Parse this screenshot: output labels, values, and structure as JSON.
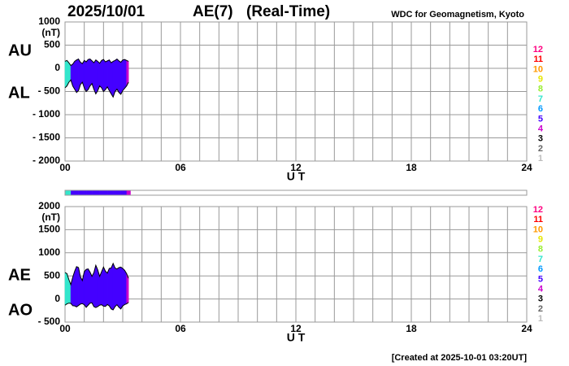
{
  "header": {
    "date": "2025/10/01",
    "index": "AE(7)",
    "mode": "(Real-Time)",
    "source": "WDC for Geomagnetism, Kyoto",
    "created": "[Created at 2025-10-01 03:20UT]"
  },
  "chart_data": [
    {
      "type": "area",
      "ylabel": "(nT)",
      "xlabel": "U T",
      "x": [
        0,
        0.1,
        0.2,
        0.3,
        0.4,
        0.5,
        0.6,
        0.7,
        0.8,
        0.9,
        1,
        1.1,
        1.2,
        1.3,
        1.4,
        1.5,
        1.6,
        1.7,
        1.8,
        1.9,
        2,
        2.1,
        2.2,
        2.3,
        2.4,
        2.5,
        2.6,
        2.7,
        2.8,
        2.9,
        3,
        3.1,
        3.2,
        3.3
      ],
      "series": [
        {
          "name": "AU",
          "values": [
            150,
            170,
            120,
            60,
            90,
            150,
            180,
            200,
            130,
            100,
            170,
            140,
            190,
            200,
            160,
            120,
            180,
            150,
            110,
            170,
            190,
            140,
            160,
            180,
            120,
            150,
            170,
            200,
            160,
            130,
            180,
            190,
            170,
            150
          ]
        },
        {
          "name": "AL",
          "values": [
            -420,
            -380,
            -300,
            -250,
            -380,
            -450,
            -520,
            -480,
            -350,
            -300,
            -420,
            -500,
            -460,
            -380,
            -330,
            -450,
            -550,
            -480,
            -380,
            -420,
            -500,
            -460,
            -400,
            -480,
            -550,
            -620,
            -500,
            -450,
            -520,
            -560,
            -480,
            -430,
            -380,
            -300
          ]
        }
      ],
      "stations": [
        7,
        7,
        7,
        5,
        5,
        5,
        5,
        5,
        5,
        5,
        5,
        5,
        5,
        5,
        5,
        5,
        5,
        5,
        5,
        5,
        5,
        5,
        5,
        5,
        5,
        5,
        5,
        5,
        5,
        5,
        5,
        5,
        4,
        4
      ],
      "legend": {
        "labels": [
          12,
          11,
          10,
          9,
          8,
          7,
          6,
          5,
          4,
          3,
          2,
          1
        ],
        "colors": [
          "#ff0080",
          "#ff0000",
          "#ff9900",
          "#e6e600",
          "#99ee33",
          "#33e6cc",
          "#0099ff",
          "#4400ff",
          "#cc00cc",
          "#000000",
          "#666666",
          "#bbbbbb"
        ]
      },
      "xlim": [
        0,
        24
      ],
      "xticks": [
        {
          "value": 0,
          "label": "00"
        },
        {
          "value": 6,
          "label": "06"
        },
        12,
        18,
        24
      ],
      "xgrid": [
        0,
        1,
        2,
        3,
        4,
        5,
        6,
        7,
        8,
        9,
        10,
        11,
        12,
        13,
        14,
        15,
        16,
        17,
        18,
        19,
        20,
        21,
        22,
        23,
        24
      ],
      "ylim": [
        -2000,
        1000
      ],
      "yticks": [
        {
          "value": -2000,
          "label": "- 2000"
        },
        {
          "value": -1500,
          "label": "- 1500"
        },
        {
          "value": -1000,
          "label": "- 1000"
        },
        {
          "value": -500,
          "label": "- 500"
        },
        0,
        500,
        1000
      ],
      "grid": true,
      "outline_color": "#000000"
    },
    {
      "type": "area",
      "ylabel": "(nT)",
      "xlabel": "U T",
      "x": [
        0,
        0.1,
        0.2,
        0.3,
        0.4,
        0.5,
        0.6,
        0.7,
        0.8,
        0.9,
        1,
        1.1,
        1.2,
        1.3,
        1.4,
        1.5,
        1.6,
        1.7,
        1.8,
        1.9,
        2,
        2.1,
        2.2,
        2.3,
        2.4,
        2.5,
        2.6,
        2.7,
        2.8,
        2.9,
        3,
        3.1,
        3.2,
        3.3
      ],
      "series": [
        {
          "name": "AE",
          "values": [
            570,
            550,
            420,
            310,
            470,
            600,
            700,
            680,
            480,
            400,
            590,
            640,
            650,
            580,
            490,
            570,
            730,
            630,
            490,
            590,
            690,
            600,
            560,
            660,
            670,
            770,
            670,
            650,
            680,
            690,
            660,
            620,
            550,
            450
          ]
        },
        {
          "name": "AO",
          "values": [
            -135,
            -105,
            -90,
            -95,
            -145,
            -150,
            -170,
            -140,
            -110,
            -100,
            -125,
            -180,
            -135,
            -90,
            -85,
            -165,
            -185,
            -165,
            -135,
            -125,
            -155,
            -160,
            -120,
            -150,
            -215,
            -235,
            -165,
            -125,
            -180,
            -215,
            -150,
            -120,
            -105,
            -75
          ]
        }
      ],
      "xlim": [
        0,
        24
      ],
      "xticks": [
        {
          "value": 0,
          "label": "00"
        },
        {
          "value": 6,
          "label": "06"
        },
        12,
        18,
        24
      ],
      "xgrid": [
        0,
        1,
        2,
        3,
        4,
        5,
        6,
        7,
        8,
        9,
        10,
        11,
        12,
        13,
        14,
        15,
        16,
        17,
        18,
        19,
        20,
        21,
        22,
        23,
        24
      ],
      "ylim": [
        -500,
        2000
      ],
      "yticks": [
        {
          "value": -500,
          "label": "- 500"
        },
        0,
        500,
        1000,
        1500,
        2000
      ],
      "grid": true,
      "outline_color": "#000000"
    }
  ]
}
